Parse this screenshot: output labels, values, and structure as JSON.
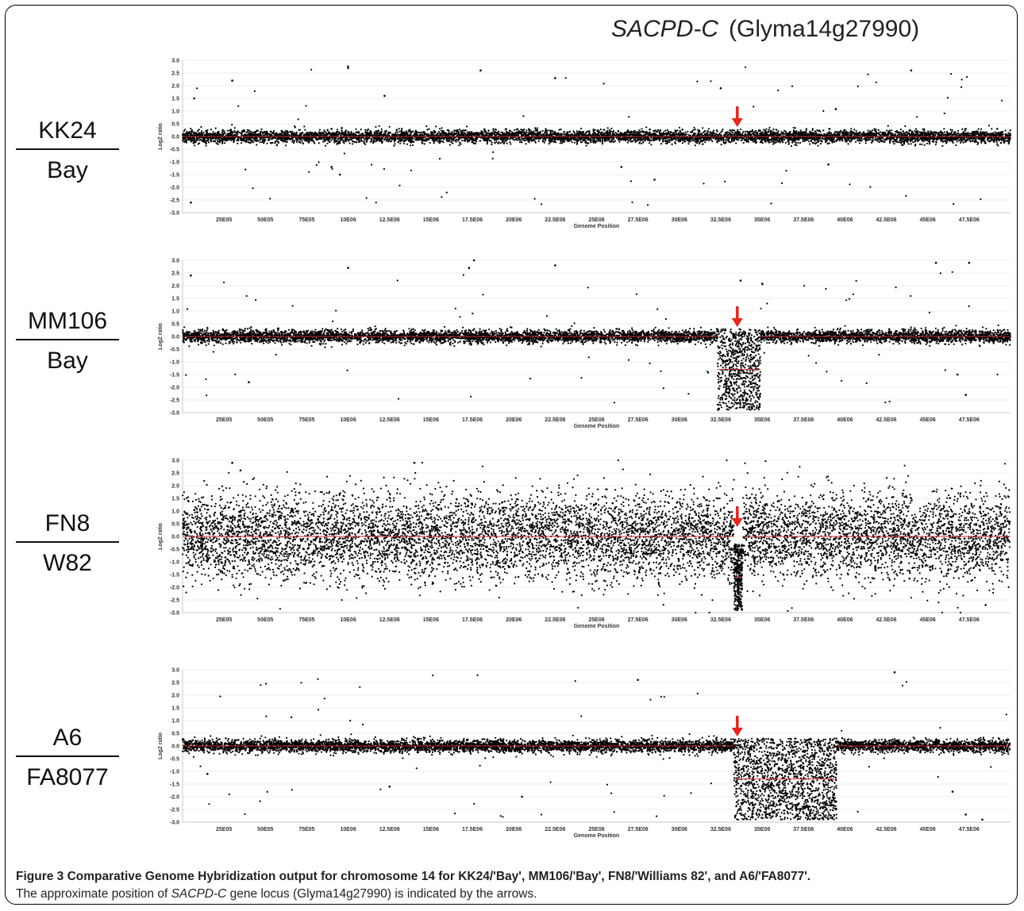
{
  "figure": {
    "gene_italic": "SACPD-C",
    "gene_locus": "(Glyma14g27990)",
    "caption_label": "Figure 3",
    "caption_title": "Comparative Genome Hybridization output for chromosome 14 for KK24/'Bay', MM106/'Bay', FN8/'Williams 82', and A6/'FA8077'.",
    "caption_pre": "The approximate position of ",
    "caption_gene": "SACPD-C",
    "caption_post": " gene locus (Glyma14g27990) is indicated by the arrows."
  },
  "colors": {
    "points": "#000000",
    "segment": "#cc2a2a",
    "arrow": "#e8231b",
    "grid": "#e6e6e6"
  },
  "chart_data": [
    {
      "type": "scatter",
      "numerator": "KK24",
      "denominator": "Bay",
      "xlabel": "Genome Position",
      "ylabel": "Log2 ratio",
      "xlim": [
        0,
        50000000
      ],
      "ylim": [
        -3.0,
        3.0
      ],
      "yticks": [
        "3.0",
        "2.5",
        "2.0",
        "1.5",
        "1.0",
        "0.5",
        "0.0",
        "-0.5",
        "-1.0",
        "-1.5",
        "-2.0",
        "-2.5",
        "-3.0"
      ],
      "xticks": [
        "25E05",
        "50E05",
        "75E05",
        "10E06",
        "12.5E06",
        "15E06",
        "17.5E06",
        "20E06",
        "22.5E06",
        "25E06",
        "27.5E06",
        "30E06",
        "32.5E06",
        "35E06",
        "37.5E06",
        "40E06",
        "42.5E06",
        "45E06",
        "47.5E06"
      ],
      "xtick_values": [
        2500000,
        5000000,
        7500000,
        10000000,
        12500000,
        15000000,
        17500000,
        20000000,
        22500000,
        25000000,
        27500000,
        30000000,
        32500000,
        35000000,
        37500000,
        40000000,
        42500000,
        45000000,
        47500000
      ],
      "baseline_spread": 0.12,
      "regions": [],
      "arrow_at": 33500000,
      "sample_outliers": [
        [
          500000,
          -2.6
        ],
        [
          700000,
          1.5
        ],
        [
          3000000,
          2.2
        ],
        [
          9000000,
          -1.2
        ],
        [
          9500000,
          -1.5
        ],
        [
          10000000,
          2.7
        ],
        [
          12200000,
          1.6
        ],
        [
          18000000,
          2.6
        ],
        [
          22500000,
          2.3
        ],
        [
          26500000,
          -1.2
        ],
        [
          28500000,
          -1.7
        ],
        [
          32500000,
          1.9
        ],
        [
          39000000,
          -1.1
        ],
        [
          44000000,
          2.6
        ]
      ]
    },
    {
      "type": "scatter",
      "numerator": "MM106",
      "denominator": "Bay",
      "xlabel": "Genome Position",
      "ylabel": "Log2 ratio",
      "xlim": [
        0,
        50000000
      ],
      "ylim": [
        -3.0,
        3.0
      ],
      "yticks": [
        "3.0",
        "2.5",
        "2.0",
        "1.5",
        "1.0",
        "0.5",
        "0.0",
        "-0.5",
        "-1.0",
        "-1.5",
        "-2.0",
        "-2.5",
        "-3.0"
      ],
      "xticks": [
        "25E05",
        "50E05",
        "75E05",
        "10E06",
        "12.5E06",
        "15E06",
        "17.5E06",
        "20E06",
        "22.5E06",
        "25E06",
        "27.5E06",
        "30E06",
        "32.5E06",
        "35E06",
        "37.5E06",
        "40E06",
        "42.5E06",
        "45E06",
        "47.5E06"
      ],
      "xtick_values": [
        2500000,
        5000000,
        7500000,
        10000000,
        12500000,
        15000000,
        17500000,
        20000000,
        22500000,
        25000000,
        27500000,
        30000000,
        32500000,
        35000000,
        37500000,
        40000000,
        42500000,
        45000000,
        47500000
      ],
      "baseline_spread": 0.12,
      "regions": [
        {
          "x0": 32300000,
          "x1": 34900000,
          "mean": -1.3,
          "spread": 1.6
        }
      ],
      "arrow_at": 33500000,
      "sample_outliers": [
        [
          500000,
          2.4
        ],
        [
          4000000,
          -1.8
        ],
        [
          10000000,
          2.7
        ],
        [
          17300000,
          2.7
        ],
        [
          17600000,
          3.0
        ],
        [
          22500000,
          2.8
        ],
        [
          33700000,
          2.2
        ],
        [
          45500000,
          2.9
        ],
        [
          47500000,
          2.9
        ],
        [
          46800000,
          -1.5
        ],
        [
          47300000,
          -2.3
        ]
      ]
    },
    {
      "type": "scatter",
      "numerator": "FN8",
      "denominator": "W82",
      "xlabel": "Genome Position",
      "ylabel": "Log2 ratio",
      "xlim": [
        0,
        50000000
      ],
      "ylim": [
        -3.0,
        3.0
      ],
      "yticks": [
        "3.0",
        "2.5",
        "2.0",
        "1.5",
        "1.0",
        "0.5",
        "0.0",
        "-0.5",
        "-1.0",
        "-1.5",
        "-2.0",
        "-2.5",
        "-3.0"
      ],
      "xticks": [
        "25E05",
        "50E05",
        "75E05",
        "10E06",
        "12.5E06",
        "15E06",
        "17.5E06",
        "20E06",
        "22.5E06",
        "25E06",
        "27.5E06",
        "30E06",
        "32.5E06",
        "35E06",
        "37.5E06",
        "40E06",
        "42.5E06",
        "45E06",
        "47.5E06"
      ],
      "xtick_values": [
        2500000,
        5000000,
        7500000,
        10000000,
        12500000,
        15000000,
        17500000,
        20000000,
        22500000,
        25000000,
        27500000,
        30000000,
        32500000,
        35000000,
        37500000,
        40000000,
        42500000,
        45000000,
        47500000
      ],
      "baseline_spread": 0.85,
      "regions": [
        {
          "x0": 33300000,
          "x1": 33800000,
          "mean": -1.6,
          "spread": 1.3
        }
      ],
      "arrow_at": 33500000,
      "sample_outliers": [
        [
          3000000,
          2.9
        ],
        [
          3500000,
          2.6
        ],
        [
          14000000,
          2.9
        ],
        [
          33500000,
          -2.9
        ],
        [
          48500000,
          -2.7
        ]
      ]
    },
    {
      "type": "scatter",
      "numerator": "A6",
      "denominator": "FA8077",
      "xlabel": "Genome Position",
      "ylabel": "Log2 ratio",
      "xlim": [
        0,
        50000000
      ],
      "ylim": [
        -3.0,
        3.0
      ],
      "yticks": [
        "3.0",
        "2.5",
        "2.0",
        "1.5",
        "1.0",
        "0.5",
        "0.0",
        "-0.5",
        "-1.0",
        "-1.5",
        "-2.0",
        "-2.5",
        "-3.0"
      ],
      "xticks": [
        "25E05",
        "50E05",
        "75E05",
        "10E06",
        "12.5E06",
        "15E06",
        "17.5E06",
        "20E06",
        "22.5E06",
        "25E06",
        "27.5E06",
        "30E06",
        "32.5E06",
        "35E06",
        "37.5E06",
        "40E06",
        "42.5E06",
        "45E06",
        "47.5E06"
      ],
      "xtick_values": [
        2500000,
        5000000,
        7500000,
        10000000,
        12500000,
        15000000,
        17500000,
        20000000,
        22500000,
        25000000,
        27500000,
        30000000,
        32500000,
        35000000,
        37500000,
        40000000,
        42500000,
        45000000,
        47500000
      ],
      "baseline_spread": 0.12,
      "regions": [
        {
          "x0": 33300000,
          "x1": 39500000,
          "mean": -1.3,
          "spread": 1.6
        }
      ],
      "arrow_at": 33500000,
      "sample_outliers": [
        [
          1500000,
          -1.1
        ],
        [
          12500000,
          -1.6
        ],
        [
          20500000,
          -2.0
        ],
        [
          27500000,
          2.6
        ],
        [
          43000000,
          2.9
        ],
        [
          46500000,
          -1.8
        ],
        [
          47300000,
          -2.7
        ],
        [
          48300000,
          -2.9
        ]
      ]
    }
  ]
}
